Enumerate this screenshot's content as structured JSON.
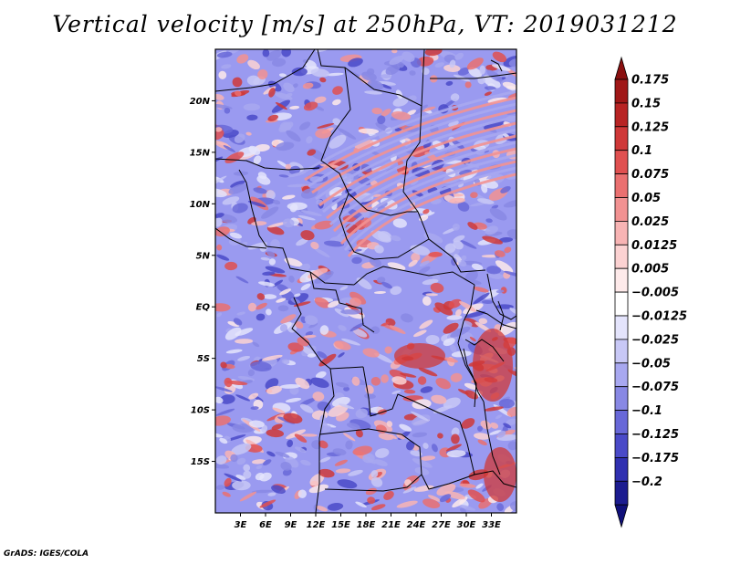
{
  "title": "Vertical velocity [m/s] at 250hPa, VT: 2019031212",
  "footer": "GrADS: IGES/COLA",
  "map": {
    "lon_range": [
      0,
      36
    ],
    "lat_range": [
      -20,
      25
    ],
    "lat_ticks": [
      {
        "value": 20,
        "label": "20N"
      },
      {
        "value": 15,
        "label": "15N"
      },
      {
        "value": 10,
        "label": "10N"
      },
      {
        "value": 5,
        "label": "5N"
      },
      {
        "value": 0,
        "label": "EQ"
      },
      {
        "value": -5,
        "label": "5S"
      },
      {
        "value": -10,
        "label": "10S"
      },
      {
        "value": -15,
        "label": "15S"
      }
    ],
    "lon_ticks": [
      {
        "value": 3,
        "label": "3E"
      },
      {
        "value": 6,
        "label": "6E"
      },
      {
        "value": 9,
        "label": "9E"
      },
      {
        "value": 12,
        "label": "12E"
      },
      {
        "value": 15,
        "label": "15E"
      },
      {
        "value": 18,
        "label": "18E"
      },
      {
        "value": 21,
        "label": "21E"
      },
      {
        "value": 24,
        "label": "24E"
      },
      {
        "value": 27,
        "label": "27E"
      },
      {
        "value": 30,
        "label": "30E"
      },
      {
        "value": 33,
        "label": "33E"
      }
    ]
  },
  "colorbar": {
    "levels": [
      {
        "label": "0.175",
        "color": "#a01818"
      },
      {
        "label": "0.15",
        "color": "#b82424"
      },
      {
        "label": "0.125",
        "color": "#cf3838"
      },
      {
        "label": "0.1",
        "color": "#e05050"
      },
      {
        "label": "0.075",
        "color": "#ea7070"
      },
      {
        "label": "0.05",
        "color": "#f29292"
      },
      {
        "label": "0.025",
        "color": "#f8b4b4"
      },
      {
        "label": "0.0125",
        "color": "#fcd2d2"
      },
      {
        "label": "0.005",
        "color": "#feeaea"
      },
      {
        "label": "−0.005",
        "color": "#ffffff"
      },
      {
        "label": "−0.0125",
        "color": "#e4e4fc"
      },
      {
        "label": "−0.025",
        "color": "#c8c8f6"
      },
      {
        "label": "−0.05",
        "color": "#a8a8f0"
      },
      {
        "label": "−0.075",
        "color": "#8888e4"
      },
      {
        "label": "−0.1",
        "color": "#6868d8"
      },
      {
        "label": "−0.125",
        "color": "#4a4ac8"
      },
      {
        "label": "−0.175",
        "color": "#3030b0"
      },
      {
        "label": "−0.2",
        "color": "#1c1c90"
      }
    ],
    "top_triangle_color": "#8a1010",
    "bottom_triangle_color": "#10107a"
  },
  "colors": {
    "ascent": "#d04040",
    "descent": "#5050d8",
    "background_field": "#9a9af0",
    "borders": "#000000"
  }
}
